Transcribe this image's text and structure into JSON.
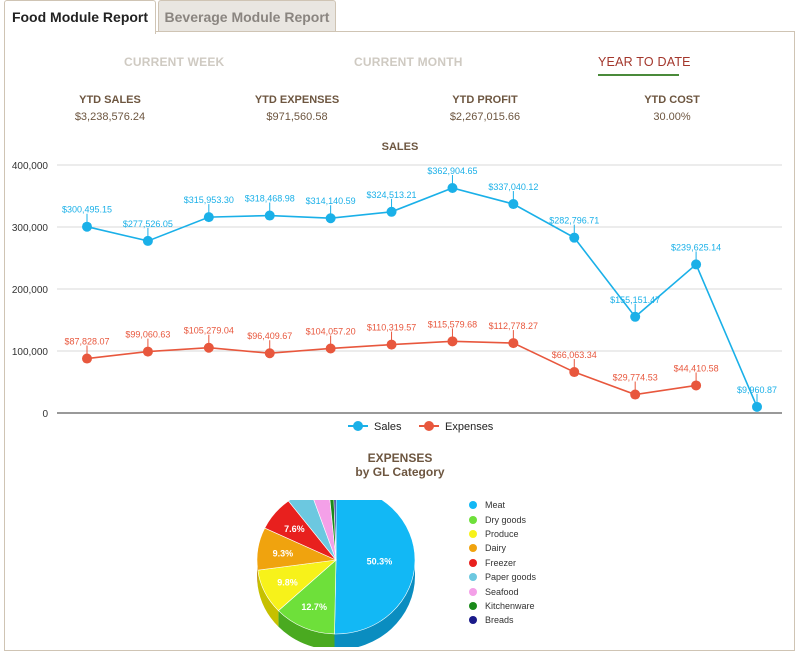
{
  "tabs": [
    {
      "label": "Food Module Report"
    },
    {
      "label": "Beverage Module Report"
    }
  ],
  "periods": {
    "current_week": "CURRENT WEEK",
    "current_month": "CURRENT MONTH",
    "ytd": "YEAR TO DATE"
  },
  "kpis": [
    {
      "label": "YTD SALES",
      "value": "$3,238,576.24"
    },
    {
      "label": "YTD EXPENSES",
      "value": "$971,560.58"
    },
    {
      "label": "YTD PROFIT",
      "value": "$2,267,015.66"
    },
    {
      "label": "YTD COST",
      "value": "30.00%"
    }
  ],
  "chart_data": [
    {
      "type": "line",
      "title": "SALES",
      "ylim": [
        0,
        400000
      ],
      "yticks": [
        0,
        100000,
        200000,
        300000,
        400000
      ],
      "ytick_labels": [
        "0",
        "100,000",
        "200,000",
        "300,000",
        "400,000"
      ],
      "grid": true,
      "legend_position": "bottom",
      "series": [
        {
          "name": "Sales",
          "color": "#1ab0e8",
          "values": [
            300495.15,
            277526.05,
            315953.3,
            318468.98,
            314140.59,
            324513.21,
            362904.65,
            337040.12,
            282796.71,
            155151.47,
            239625.14,
            9960.87
          ],
          "labels": [
            "$300,495.15",
            "$277,526.05",
            "$315,953.30",
            "$318,468.98",
            "$314,140.59",
            "$324,513.21",
            "$362,904.65",
            "$337,040.12",
            "$282,796.71",
            "$155,151.47",
            "$239,625.14",
            "$9,960.87"
          ]
        },
        {
          "name": "Expenses",
          "color": "#e8573d",
          "values": [
            87828.07,
            99060.63,
            105279.04,
            96409.67,
            104057.2,
            110319.57,
            115579.68,
            112778.27,
            66063.34,
            29774.53,
            44410.58
          ],
          "labels": [
            "$87,828.07",
            "$99,060.63",
            "$105,279.04",
            "$96,409.67",
            "$104,057.20",
            "$110,319.57",
            "$115,579.68",
            "$112,778.27",
            "$66,063.34",
            "$29,774.53",
            "$44,410.58"
          ]
        }
      ]
    },
    {
      "type": "pie",
      "title": "EXPENSES",
      "subtitle": "by GL Category",
      "legend_position": "right",
      "slices": [
        {
          "name": "Meat",
          "value": 50.3,
          "label": "50.3%",
          "color": "#12b8f5",
          "dark": "#0a8dc0"
        },
        {
          "name": "Dry goods",
          "value": 12.7,
          "label": "12.7%",
          "color": "#6ee03a",
          "dark": "#4aaa20"
        },
        {
          "name": "Produce",
          "value": 9.8,
          "label": "9.8%",
          "color": "#f7f21a",
          "dark": "#c6c000"
        },
        {
          "name": "Dairy",
          "value": 9.3,
          "label": "9.3%",
          "color": "#f0a30e",
          "dark": "#c07f00"
        },
        {
          "name": "Freezer",
          "value": 7.6,
          "label": "7.6%",
          "color": "#e8201e",
          "dark": "#b01010"
        },
        {
          "name": "Paper goods",
          "value": 5.0,
          "label": "",
          "color": "#6cc8e0",
          "dark": "#4aa0b8"
        },
        {
          "name": "Seafood",
          "value": 3.8,
          "label": "",
          "color": "#f4a0e8",
          "dark": "#c878b8"
        },
        {
          "name": "Kitchenware",
          "value": 1.0,
          "label": "",
          "color": "#1a8a1a",
          "dark": "#0f600f"
        },
        {
          "name": "Breads",
          "value": 0.5,
          "label": "",
          "color": "#1a1a8a",
          "dark": "#0f0f60"
        }
      ]
    }
  ]
}
